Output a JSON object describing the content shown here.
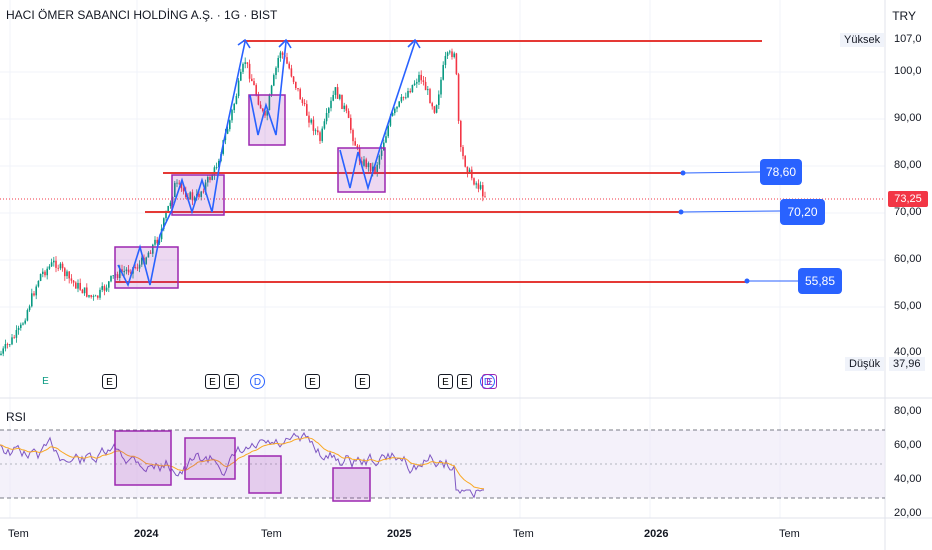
{
  "header": {
    "title": "HACI ÖMER SABANCI HOLDİNG A.Ş. · 1G · BIST",
    "currency": "TRY"
  },
  "price_axis": {
    "ticks": [
      "107,0",
      "100,0",
      "90,00",
      "80,00",
      "70,00",
      "60,00",
      "50,00",
      "40,00"
    ]
  },
  "tags": {
    "high_label": "Yüksek",
    "low_label": "Düşük",
    "low_value": "37,96",
    "last_price": "73,25"
  },
  "levels": [
    {
      "label": "78,60"
    },
    {
      "label": "70,20"
    },
    {
      "label": "55,85"
    }
  ],
  "events": [
    {
      "letter": "E",
      "kind": "Eg"
    },
    {
      "letter": "E",
      "kind": "E"
    },
    {
      "letter": "E",
      "kind": "E"
    },
    {
      "letter": "E",
      "kind": "E"
    },
    {
      "letter": "D",
      "kind": "D"
    },
    {
      "letter": "E",
      "kind": "E"
    },
    {
      "letter": "E",
      "kind": "E"
    },
    {
      "letter": "E",
      "kind": "E"
    },
    {
      "letter": "E",
      "kind": "E"
    },
    {
      "letter": "D",
      "kind": "D"
    },
    {
      "letter": "E",
      "kind": "Ep"
    }
  ],
  "rsi": {
    "label": "RSI",
    "ticks": [
      "80,00",
      "60,00",
      "40,00",
      "20,00"
    ]
  },
  "time_axis": {
    "labels": [
      "Tem",
      "2024",
      "Tem",
      "2025",
      "Tem",
      "2026",
      "Tem"
    ]
  },
  "colors": {
    "up": "#089981",
    "down": "#f23645",
    "level_line": "#e53935",
    "box": "#9c27b0",
    "arrow": "#2962ff",
    "rsi": "#7e57c2",
    "rsi_ma": "#f9a825"
  }
}
